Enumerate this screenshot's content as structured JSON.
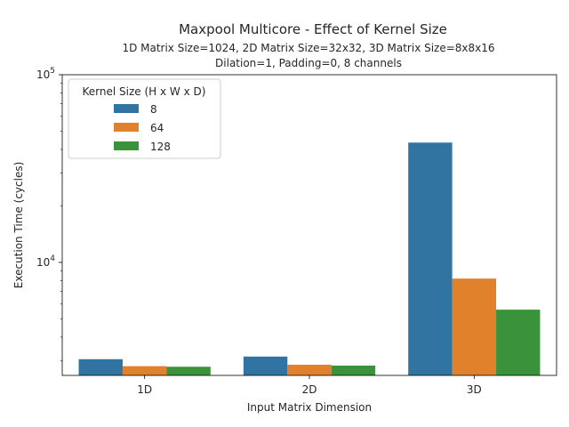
{
  "chart_data": {
    "type": "bar",
    "title": "Maxpool Multicore - Effect of Kernel Size",
    "subtitle_lines": [
      "1D Matrix Size=1024, 2D Matrix Size=32x32, 3D Matrix Size=8x8x16",
      "Dilation=1, Padding=0, 8 channels"
    ],
    "xlabel": "Input Matrix Dimension",
    "ylabel": "Execution Time (cycles)",
    "yscale": "log",
    "ylim": [
      2500,
      100000
    ],
    "y_ticks": [
      {
        "value": 10000,
        "base": "10",
        "exp": "4"
      },
      {
        "value": 100000,
        "base": "10",
        "exp": "5"
      }
    ],
    "y_minor_ticks": [
      3000,
      4000,
      5000,
      6000,
      7000,
      8000,
      9000,
      20000,
      30000,
      40000,
      50000,
      60000,
      70000,
      80000,
      90000
    ],
    "categories": [
      "1D",
      "2D",
      "3D"
    ],
    "legend": {
      "title": "Kernel Size (H x W x D)",
      "position": "upper left"
    },
    "series": [
      {
        "name": "8",
        "color": "#3274a1",
        "values": [
          3050,
          3150,
          43500
        ]
      },
      {
        "name": "64",
        "color": "#e1812c",
        "values": [
          2800,
          2850,
          8200
        ]
      },
      {
        "name": "128",
        "color": "#3a923a",
        "values": [
          2780,
          2820,
          5600
        ]
      }
    ]
  }
}
